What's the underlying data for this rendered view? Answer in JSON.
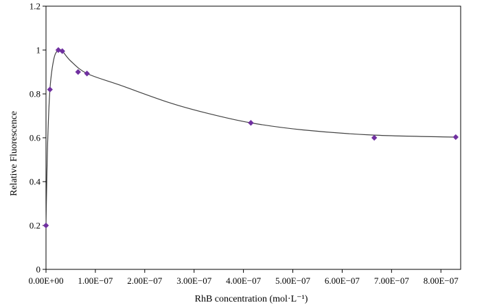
{
  "chart_data": {
    "type": "scatter",
    "title": "",
    "xlabel": "RhB concentration (mol·L⁻¹)",
    "ylabel": "Relative Fluorescence",
    "xlim": [
      0,
      8.4e-07
    ],
    "ylim": [
      0,
      1.2
    ],
    "x_ticks": [
      0,
      1e-07,
      2e-07,
      3e-07,
      4e-07,
      5e-07,
      6e-07,
      7e-07,
      8e-07
    ],
    "x_tick_labels": [
      "0.00E+00",
      "1.00E−07",
      "2.00E−07",
      "3.00E−07",
      "4.00E−07",
      "5.00E−07",
      "6.00E−07",
      "7.00E−07",
      "8.00E−07"
    ],
    "y_ticks": [
      0,
      0.2,
      0.4,
      0.6,
      0.8,
      1.0,
      1.2
    ],
    "y_tick_labels": [
      "0",
      "0.2",
      "0.4",
      "0.6",
      "0.8",
      "1",
      "1.2"
    ],
    "grid": false,
    "legend": "none",
    "series": [
      {
        "marker": "diamond",
        "color": "#7030a0",
        "points": [
          {
            "x": 0.0,
            "y": 0.2
          },
          {
            "x": 8e-09,
            "y": 0.82
          },
          {
            "x": 2.5e-08,
            "y": 1.0
          },
          {
            "x": 3.3e-08,
            "y": 0.995
          },
          {
            "x": 6.5e-08,
            "y": 0.9
          },
          {
            "x": 8.3e-08,
            "y": 0.893
          },
          {
            "x": 4.15e-07,
            "y": 0.668
          },
          {
            "x": 6.65e-07,
            "y": 0.6
          },
          {
            "x": 8.3e-07,
            "y": 0.603
          }
        ]
      }
    ],
    "trendline": {
      "color": "#404040",
      "points": [
        {
          "x": 0.0,
          "y": 0.2
        },
        {
          "x": 3e-09,
          "y": 0.55
        },
        {
          "x": 8e-09,
          "y": 0.82
        },
        {
          "x": 1.6e-08,
          "y": 0.96
        },
        {
          "x": 2.5e-08,
          "y": 1.0
        },
        {
          "x": 3.3e-08,
          "y": 0.995
        },
        {
          "x": 5e-08,
          "y": 0.95
        },
        {
          "x": 8.3e-08,
          "y": 0.893
        },
        {
          "x": 1.5e-07,
          "y": 0.84
        },
        {
          "x": 2.5e-07,
          "y": 0.76
        },
        {
          "x": 3.3e-07,
          "y": 0.71
        },
        {
          "x": 4.15e-07,
          "y": 0.668
        },
        {
          "x": 5.2e-07,
          "y": 0.636
        },
        {
          "x": 6.65e-07,
          "y": 0.612
        },
        {
          "x": 8.3e-07,
          "y": 0.603
        }
      ]
    }
  }
}
